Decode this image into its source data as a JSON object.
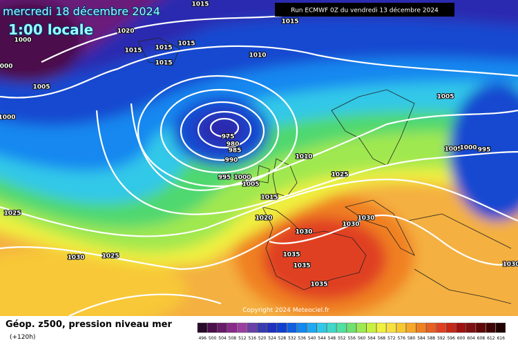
{
  "header": {
    "date": "mercredi 18 décembre 2024",
    "time": "1:00 locale",
    "run": "Run ECMWF 0Z du vendredi 13 décembre 2024"
  },
  "isobar_labels": [
    1015,
    1020,
    1000,
    1015,
    1015,
    1015,
    1015,
    1000,
    1010,
    1015,
    1005,
    1000,
    1005,
    975,
    980,
    985,
    990,
    1010,
    1005,
    1000,
    995,
    995,
    1000,
    1005,
    1025,
    1015,
    1025,
    1020,
    1030,
    1030,
    1030,
    1030,
    1025,
    1035,
    1035,
    1035,
    1030
  ],
  "copyright": "Copyright 2024 Meteociel.fr",
  "footer": {
    "title": "Géop. z500, pression niveau mer",
    "subtitle": "(+120h)"
  },
  "legend": {
    "labels": [
      496,
      500,
      504,
      508,
      512,
      516,
      520,
      524,
      528,
      532,
      536,
      540,
      544,
      548,
      552,
      556,
      560,
      564,
      568,
      572,
      576,
      580,
      584,
      588,
      592,
      596,
      600,
      604,
      608,
      612,
      616
    ],
    "colors": [
      "#2a0a2a",
      "#4b0f4b",
      "#6a1a6a",
      "#8a2a8a",
      "#9b3fa0",
      "#6a40a8",
      "#3a3ab0",
      "#2030c0",
      "#1040d0",
      "#1060e0",
      "#1488f0",
      "#20a8f0",
      "#30c8e8",
      "#40d8c8",
      "#50e0a0",
      "#70e070",
      "#a0e850",
      "#c8f040",
      "#f0f040",
      "#f8e040",
      "#f8c830",
      "#f8a828",
      "#f08020",
      "#e86020",
      "#e04020",
      "#c82818",
      "#a01010",
      "#801010",
      "#600808",
      "#400404",
      "#200202"
    ]
  }
}
